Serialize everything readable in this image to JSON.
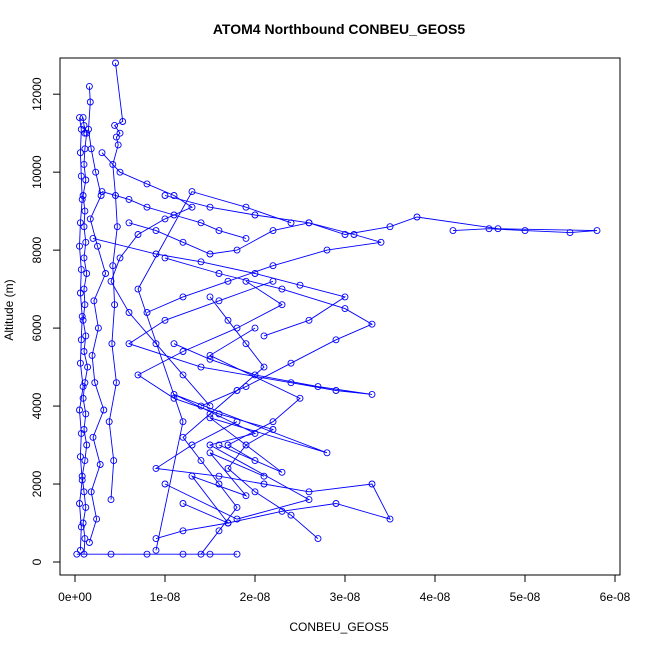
{
  "chart_data": {
    "type": "scatter",
    "title": "ATOM4 Northbound CONBEU_GEOS5",
    "xlabel": "CONBEU_GEOS5",
    "ylabel": "Altitude (m)",
    "xlim": [
      0,
      6e-08
    ],
    "ylim": [
      0,
      12800
    ],
    "x_ticks": [
      {
        "value": 0,
        "label": "0e+00"
      },
      {
        "value": 1e-08,
        "label": "1e-08"
      },
      {
        "value": 2e-08,
        "label": "2e-08"
      },
      {
        "value": 3e-08,
        "label": "3e-08"
      },
      {
        "value": 4e-08,
        "label": "4e-08"
      },
      {
        "value": 5e-08,
        "label": "5e-08"
      },
      {
        "value": 6e-08,
        "label": "6e-08"
      }
    ],
    "y_ticks": [
      {
        "value": 0,
        "label": "0"
      },
      {
        "value": 2000,
        "label": "2000"
      },
      {
        "value": 4000,
        "label": "4000"
      },
      {
        "value": 6000,
        "label": "6000"
      },
      {
        "value": 8000,
        "label": "8000"
      },
      {
        "value": 10000,
        "label": "10000"
      },
      {
        "value": 12000,
        "label": "12000"
      }
    ],
    "grid": false,
    "marker": "open-circle",
    "connected": true,
    "color": "#0000ff",
    "series": [
      {
        "x": [
          1e-09,
          1.1e-09,
          9e-10,
          1.2e-09,
          1e-09,
          8e-10,
          1.1e-09,
          1.3e-09,
          1e-09,
          1.2e-09,
          9e-10,
          1.1e-09,
          1.4e-09,
          1e-09,
          1.2e-09,
          9e-10,
          1.1e-09,
          1e-09,
          1.3e-09,
          1e-09,
          1.2e-09,
          1e-09,
          1.1e-09,
          9e-10,
          1.2e-09,
          1e-09,
          1.1e-09,
          1.3e-09,
          1e-09,
          9e-10,
          1.1e-09
        ],
        "y": [
          200,
          600,
          1000,
          1400,
          1800,
          2200,
          2600,
          3000,
          3400,
          3800,
          4200,
          4600,
          5000,
          5400,
          5800,
          6200,
          6600,
          7000,
          7400,
          7800,
          8200,
          8600,
          9000,
          9400,
          9800,
          10200,
          10600,
          11000,
          11200,
          11400,
          11000
        ]
      },
      {
        "x": [
          6e-10,
          7e-10,
          5e-10,
          8e-10,
          6e-10,
          7e-10,
          5e-10,
          9e-10,
          6e-10,
          7e-10,
          8e-10,
          6e-10,
          7e-10,
          5e-10,
          6e-10,
          8e-10,
          7e-10,
          6e-10,
          7e-10,
          5e-10
        ],
        "y": [
          300,
          900,
          1500,
          2100,
          2700,
          3300,
          3900,
          4500,
          5100,
          5700,
          6300,
          6900,
          7500,
          8100,
          8700,
          9300,
          9900,
          10500,
          11100,
          11400
        ]
      },
      {
        "x": [
          1.6e-09,
          2.4e-09,
          1.8e-09,
          2.8e-09,
          2e-09,
          3.2e-09,
          2.2e-09,
          1.9e-09,
          2.6e-09,
          2.1e-09,
          3.4e-09,
          2.5e-09,
          1.7e-09,
          2.9e-09,
          2.3e-09,
          1.8e-09,
          1.5e-09,
          1.7e-09,
          1.6e-09
        ],
        "y": [
          500,
          1100,
          1800,
          2500,
          3200,
          3900,
          4600,
          5300,
          6000,
          6700,
          7400,
          8100,
          8800,
          9400,
          10000,
          10600,
          11100,
          11800,
          12200
        ]
      },
      {
        "x": [
          4e-09,
          4.3e-09,
          3.8e-09,
          4.6e-09,
          4.1e-09,
          4.4e-09,
          4.2e-09,
          4.7e-09,
          4.5e-09,
          4.2e-09,
          4.8e-09,
          4.6e-09,
          5e-09,
          4.4e-09,
          5.3e-09,
          4.5e-09
        ],
        "y": [
          1600,
          2600,
          3600,
          4600,
          5600,
          6600,
          7600,
          8600,
          9400,
          10200,
          10700,
          10900,
          11000,
          11200,
          11300,
          12800
        ]
      },
      {
        "x": [
          4.2e-08,
          4.6e-08,
          5e-08,
          5.5e-08,
          5.8e-08,
          4.7e-08,
          3.8e-08,
          3.5e-08,
          3e-08,
          2.6e-08,
          2.2e-08,
          1.8e-08,
          1.5e-08,
          1.2e-08,
          9e-09,
          6e-09
        ],
        "y": [
          8500,
          8550,
          8500,
          8450,
          8500,
          8550,
          8850,
          8600,
          8400,
          8700,
          8500,
          8000,
          7900,
          8200,
          8500,
          8700
        ]
      },
      {
        "x": [
          1e-08,
          1.5e-08,
          2e-08,
          2.6e-08,
          3.1e-08,
          3.4e-08,
          2.8e-08,
          2.2e-08,
          1.7e-08,
          1.2e-08,
          8e-09
        ],
        "y": [
          9400,
          9100,
          8900,
          8700,
          8400,
          8200,
          8000,
          7600,
          7200,
          6800,
          6400
        ]
      },
      {
        "x": [
          2.2e-08,
          1.6e-08,
          1e-08,
          6e-09,
          1.4e-08,
          2.4e-08,
          2.9e-08,
          3.3e-08,
          2.7e-08,
          2e-08,
          1.5e-08,
          1.1e-08
        ],
        "y": [
          7200,
          6700,
          6200,
          5600,
          5000,
          4600,
          4400,
          4300,
          4500,
          4800,
          5200,
          5600
        ]
      },
      {
        "x": [
          1.8e-08,
          1.3e-08,
          9e-09,
          1.6e-08,
          2.1e-08,
          2.6e-08,
          3.3e-08,
          3.5e-08,
          2.9e-08,
          2.3e-08,
          1.7e-08,
          1.2e-08,
          9e-09
        ],
        "y": [
          3600,
          3000,
          2400,
          2200,
          2000,
          1800,
          2000,
          1100,
          1500,
          1300,
          1000,
          800,
          600
        ]
      },
      {
        "x": [
          2.7e-08,
          2.4e-08,
          2e-08,
          1.7e-08,
          1.9e-08,
          2.2e-08,
          1.6e-08,
          1.1e-08,
          7e-09,
          1.2e-08,
          1.8e-08,
          2.3e-08,
          1.9e-08
        ],
        "y": [
          600,
          1200,
          1800,
          2400,
          3000,
          3400,
          3800,
          4200,
          4800,
          5400,
          6000,
          6600,
          7200
        ]
      },
      {
        "x": [
          1.4e-08,
          1.6e-08,
          1.8e-08,
          1.6e-08,
          1.4e-08,
          1.2e-08,
          1.5e-08,
          1.8e-08,
          2.1e-08,
          1.9e-08,
          1.7e-08,
          1.5e-08
        ],
        "y": [
          200,
          800,
          1400,
          2000,
          2600,
          3200,
          3800,
          4400,
          5000,
          5600,
          6200,
          6800
        ]
      },
      {
        "x": [
          3e-09,
          5e-09,
          8e-09,
          1.1e-08,
          1.3e-08,
          1e-08,
          7e-09,
          5e-09,
          4e-09,
          6e-09,
          9e-09,
          1.2e-08,
          1.5e-08
        ],
        "y": [
          10500,
          10000,
          9700,
          9400,
          9100,
          8800,
          8400,
          7800,
          7200,
          6400,
          5600,
          4800,
          4000
        ]
      },
      {
        "x": [
          1.6e-08,
          2.3e-08,
          1.5e-08,
          2.8e-08,
          1.1e-08,
          2e-08,
          1.5e-08,
          2.6e-08,
          1.8e-08,
          1e-08
        ],
        "y": [
          3000,
          2300,
          3700,
          2800,
          4300,
          3300,
          3000,
          1600,
          1100,
          2000
        ]
      },
      {
        "x": [
          2e-09,
          9e-09,
          1.4e-08,
          2e-08,
          2.5e-08,
          3e-08,
          2.6e-08,
          2.1e-08
        ],
        "y": [
          8300,
          7900,
          7700,
          7400,
          7100,
          6800,
          6200,
          5800
        ]
      },
      {
        "x": [
          1e-08,
          1.6e-08,
          2.3e-08,
          3e-08,
          3.3e-08,
          2.9e-08,
          2.4e-08,
          1.9e-08,
          1.4e-08
        ],
        "y": [
          7800,
          7400,
          7000,
          6500,
          6100,
          5700,
          5100,
          4500,
          4000
        ]
      },
      {
        "x": [
          2e-10,
          4e-09,
          8e-09,
          1.2e-08,
          1.5e-08,
          1.8e-08
        ],
        "y": [
          200,
          200,
          200,
          200,
          200,
          200
        ]
      },
      {
        "x": [
          9e-09,
          1.2e-08,
          7e-09,
          1.3e-08,
          1.9e-08,
          2.4e-08
        ],
        "y": [
          300,
          3600,
          7000,
          9500,
          9100,
          8700
        ]
      },
      {
        "x": [
          3e-09,
          6e-09,
          8e-09,
          1.1e-08,
          1.4e-08,
          1.6e-08,
          1.9e-08
        ],
        "y": [
          9500,
          9300,
          9100,
          8900,
          8700,
          8500,
          8300
        ]
      },
      {
        "x": [
          2e-08,
          1.5e-08,
          2.5e-08,
          2.2e-08,
          1.7e-08,
          2e-08
        ],
        "y": [
          6000,
          5300,
          4200,
          3600,
          3000,
          2600
        ]
      },
      {
        "x": [
          1.2e-08,
          1.7e-08,
          1.3e-08,
          1.9e-08,
          1.5e-08,
          2.1e-08
        ],
        "y": [
          1500,
          1000,
          2200,
          1700,
          2800,
          2200
        ]
      }
    ]
  }
}
